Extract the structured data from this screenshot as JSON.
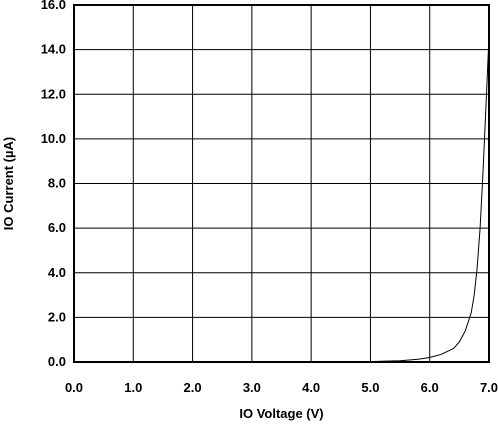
{
  "chart_data": {
    "type": "line",
    "xlabel": "IO Voltage (V)",
    "ylabel": "IO Current (µA)",
    "xlim": [
      0,
      7
    ],
    "ylim": [
      0,
      16
    ],
    "grid": true,
    "x_ticks": [
      "0.0",
      "1.0",
      "2.0",
      "3.0",
      "4.0",
      "5.0",
      "6.0",
      "7.0"
    ],
    "y_ticks": [
      "0.0",
      "2.0",
      "4.0",
      "6.0",
      "8.0",
      "10.0",
      "12.0",
      "14.0",
      "16.0"
    ],
    "series": [
      {
        "x": [
          0,
          4.5,
          5.0,
          5.5,
          5.8,
          6.0,
          6.2,
          6.4,
          6.5,
          6.6,
          6.7,
          6.75,
          6.8,
          6.85,
          6.9,
          6.95,
          7.0
        ],
        "y": [
          0,
          0.0,
          0.02,
          0.06,
          0.12,
          0.2,
          0.35,
          0.6,
          0.9,
          1.4,
          2.2,
          3.0,
          4.2,
          6.0,
          8.6,
          11.5,
          14.6
        ]
      }
    ]
  }
}
